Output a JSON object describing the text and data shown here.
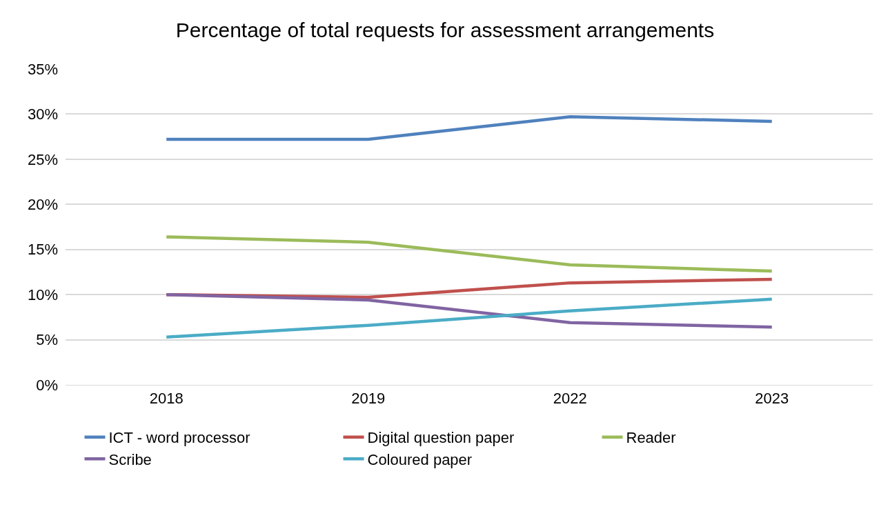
{
  "chart_data": {
    "type": "line",
    "title": "Percentage of total requests for assessment arrangements",
    "categories": [
      "2018",
      "2019",
      "2022",
      "2023"
    ],
    "series": [
      {
        "name": "ICT - word processor",
        "color": "#4f81bd",
        "values": [
          27.2,
          27.2,
          29.7,
          29.2
        ]
      },
      {
        "name": "Digital question paper",
        "color": "#c0504d",
        "values": [
          10.0,
          9.7,
          11.3,
          11.7
        ]
      },
      {
        "name": "Reader",
        "color": "#9bbb59",
        "values": [
          16.4,
          15.8,
          13.3,
          12.6
        ]
      },
      {
        "name": "Scribe",
        "color": "#8064a2",
        "values": [
          10.0,
          9.4,
          6.9,
          6.4
        ]
      },
      {
        "name": "Coloured paper",
        "color": "#4bacc6",
        "values": [
          5.3,
          6.6,
          8.2,
          9.5
        ]
      }
    ],
    "ylim": [
      0,
      35
    ],
    "yticks": [
      {
        "value": 0,
        "label": "0%"
      },
      {
        "value": 5,
        "label": "5%"
      },
      {
        "value": 10,
        "label": "10%"
      },
      {
        "value": 15,
        "label": "15%"
      },
      {
        "value": 20,
        "label": "20%"
      },
      {
        "value": 25,
        "label": "25%"
      },
      {
        "value": 30,
        "label": "30%"
      },
      {
        "value": 35,
        "label": "35%"
      }
    ],
    "grid": "y",
    "legend": "bottom",
    "marker": "none",
    "line_style": "solid"
  }
}
